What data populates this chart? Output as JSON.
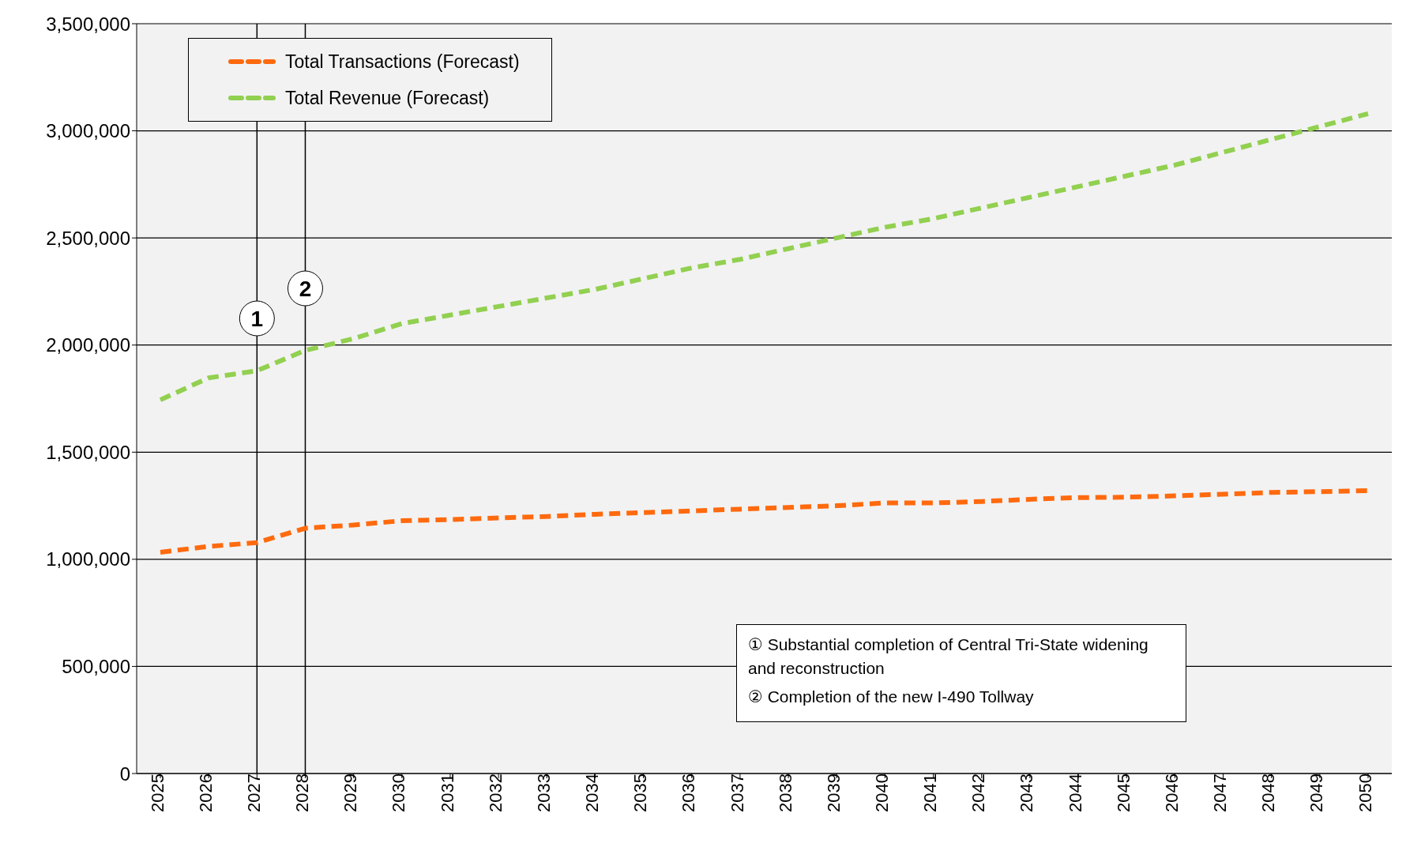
{
  "chart_data": {
    "type": "line",
    "categories": [
      "2025",
      "2026",
      "2027",
      "2028",
      "2029",
      "2030",
      "2031",
      "2032",
      "2033",
      "2034",
      "2035",
      "2036",
      "2037",
      "2038",
      "2039",
      "2040",
      "2041",
      "2042",
      "2043",
      "2044",
      "2045",
      "2046",
      "2047",
      "2048",
      "2049",
      "2050"
    ],
    "series": [
      {
        "name": "Total Transactions (Forecast)",
        "color": "#ff6a0e",
        "values": [
          1033000,
          1060000,
          1078000,
          1145000,
          1160000,
          1180000,
          1185000,
          1193000,
          1200000,
          1210000,
          1218000,
          1226000,
          1234000,
          1242000,
          1250000,
          1263000,
          1263000,
          1270000,
          1280000,
          1288000,
          1290000,
          1296000,
          1304000,
          1312000,
          1316000,
          1320000
        ]
      },
      {
        "name": "Total Revenue (Forecast)",
        "color": "#92d050",
        "values": [
          1744000,
          1847000,
          1880000,
          1975000,
          2030000,
          2100000,
          2140000,
          2180000,
          2220000,
          2260000,
          2310000,
          2360000,
          2400000,
          2450000,
          2500000,
          2550000,
          2590000,
          2640000,
          2690000,
          2740000,
          2790000,
          2840000,
          2900000,
          2960000,
          3020000,
          3080000
        ]
      }
    ],
    "ylim": [
      0,
      3500000
    ],
    "yticks": [
      0,
      {
        "value": 500000,
        "label": "500,000"
      },
      {
        "value": 1000000,
        "label": "1,000,000"
      },
      {
        "value": 1500000,
        "label": "1,500,000"
      },
      {
        "value": 2000000,
        "label": "2,000,000"
      },
      {
        "value": 2500000,
        "label": "2,500,000"
      },
      {
        "value": 3000000,
        "label": "3,000,000"
      },
      {
        "value": 3500000,
        "label": "3,500,000"
      }
    ],
    "grid": "y",
    "legend": "top left",
    "line_style": "dashed",
    "marker": "none",
    "ref_lines": [
      {
        "axis": "x",
        "value": "2027",
        "label": "1",
        "color": "#000000"
      },
      {
        "axis": "x",
        "value": "2028",
        "label": "2",
        "color": "#000000"
      }
    ],
    "annotations": [
      "① Substantial completion of Central Tri-State widening and reconstruction",
      "② Completion of the new I-490 Tollway"
    ]
  }
}
